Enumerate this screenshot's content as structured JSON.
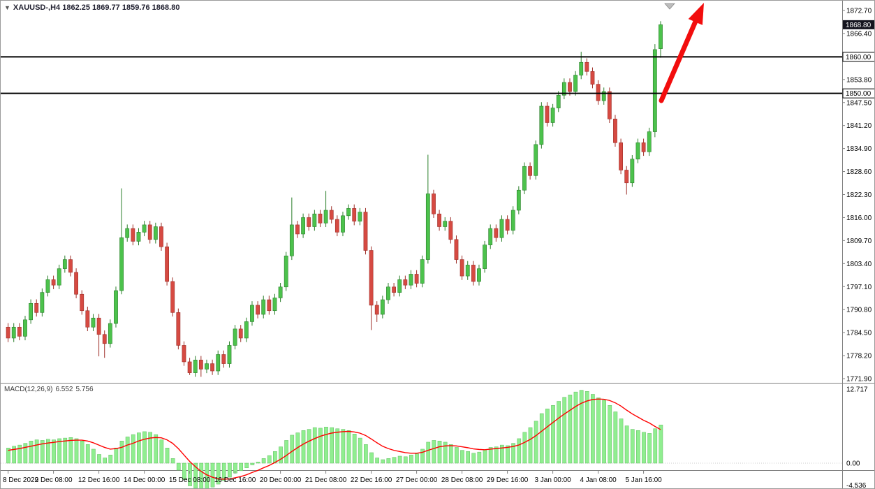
{
  "title": {
    "symbol": "XAUUSD-,H4",
    "ohlc": "1862.25 1869.77 1859.76 1868.80"
  },
  "colors": {
    "up": "#4cc24c",
    "up_stroke": "#2a7e2a",
    "down": "#d64a42",
    "down_stroke": "#9e2f29",
    "hist": "#90EE90",
    "hist_stroke": "#5fbe5f",
    "signal": "#ff0000",
    "hline": "#000000",
    "arrow": "#f20d0d",
    "current_price_bg": "#15151f",
    "current_price_text": "#ffffff",
    "axis_text": "#000000"
  },
  "price_axis": {
    "max": 1872.7,
    "min": 1771.9,
    "labels": [
      1872.7,
      1866.4,
      1853.8,
      1847.5,
      1841.2,
      1834.9,
      1828.6,
      1822.3,
      1816.0,
      1809.7,
      1803.4,
      1797.1,
      1790.8,
      1784.5,
      1778.2,
      1771.9
    ],
    "current_price": "1868.80",
    "hlines": [
      {
        "value": 1860.0,
        "label": "1860.00"
      },
      {
        "value": 1850.0,
        "label": "1850.00"
      }
    ]
  },
  "macd": {
    "label": "MACD(12,26,9)",
    "value_main": "6.552",
    "value_signal": "5.756",
    "scale": [
      "12.717",
      "0.00",
      "-4.536"
    ],
    "scale_values": [
      12.717,
      0,
      -4.536
    ]
  },
  "chart_data": {
    "type": "candlestick",
    "title": "XAUUSD-,H4",
    "symbol": "XAUUSD",
    "timeframe": "H4",
    "current_bar": {
      "open": 1862.25,
      "high": 1869.77,
      "low": 1859.76,
      "close": 1868.8
    },
    "y_range": [
      1771.9,
      1872.7
    ],
    "levels": [
      1850.0,
      1860.0
    ],
    "x_labels": [
      {
        "index": 0,
        "label": "8 Dec 2022"
      },
      {
        "index": 8,
        "label": "9 Dec 08:00"
      },
      {
        "index": 16,
        "label": "12 Dec 16:00"
      },
      {
        "index": 24,
        "label": "14 Dec 00:00"
      },
      {
        "index": 32,
        "label": "15 Dec 08:00"
      },
      {
        "index": 40,
        "label": "16 Dec 16:00"
      },
      {
        "index": 48,
        "label": "20 Dec 00:00"
      },
      {
        "index": 56,
        "label": "21 Dec 08:00"
      },
      {
        "index": 64,
        "label": "22 Dec 16:00"
      },
      {
        "index": 72,
        "label": "27 Dec 00:00"
      },
      {
        "index": 80,
        "label": "28 Dec 08:00"
      },
      {
        "index": 88,
        "label": "29 Dec 16:00"
      },
      {
        "index": 96,
        "label": "3 Jan 00:00"
      },
      {
        "index": 104,
        "label": "4 Jan 08:00"
      },
      {
        "index": 112,
        "label": "5 Jan 16:00"
      }
    ],
    "candles": [
      [
        1786.0,
        1787.1,
        1781.9,
        1783.0
      ],
      [
        1783.0,
        1787.1,
        1781.9,
        1786.0
      ],
      [
        1786.0,
        1787.1,
        1782.4,
        1783.5
      ],
      [
        1783.5,
        1789.1,
        1782.4,
        1788.0
      ],
      [
        1788.0,
        1793.6,
        1786.9,
        1792.5
      ],
      [
        1792.5,
        1793.6,
        1788.9,
        1790.0
      ],
      [
        1790.0,
        1796.6,
        1788.9,
        1795.5
      ],
      [
        1795.5,
        1800.1,
        1794.4,
        1799.0
      ],
      [
        1799.0,
        1800.1,
        1796.4,
        1797.5
      ],
      [
        1797.5,
        1803.1,
        1796.4,
        1802.0
      ],
      [
        1802.0,
        1805.6,
        1800.9,
        1804.5
      ],
      [
        1804.5,
        1805.6,
        1799.9,
        1801.0
      ],
      [
        1801.0,
        1802.1,
        1793.9,
        1795.0
      ],
      [
        1795.0,
        1796.1,
        1789.4,
        1790.5
      ],
      [
        1790.5,
        1791.6,
        1784.9,
        1786.0
      ],
      [
        1786.0,
        1789.6,
        1784.9,
        1788.5
      ],
      [
        1788.5,
        1789.6,
        1778.0,
        1784.0
      ],
      [
        1784.0,
        1785.1,
        1777.6,
        1781.5
      ],
      [
        1781.5,
        1788.1,
        1780.4,
        1787.0
      ],
      [
        1787.0,
        1797.1,
        1785.9,
        1796.0
      ],
      [
        1796.0,
        1824.0,
        1795.0,
        1810.5
      ],
      [
        1810.5,
        1814.1,
        1809.4,
        1813.0
      ],
      [
        1813.0,
        1814.1,
        1808.4,
        1809.5
      ],
      [
        1809.5,
        1813.1,
        1808.4,
        1812.0
      ],
      [
        1812.0,
        1815.1,
        1810.9,
        1814.0
      ],
      [
        1814.0,
        1815.1,
        1808.9,
        1810.0
      ],
      [
        1810.0,
        1814.6,
        1808.9,
        1813.5
      ],
      [
        1813.5,
        1814.6,
        1806.9,
        1808.0
      ],
      [
        1808.0,
        1809.1,
        1797.4,
        1798.5
      ],
      [
        1798.5,
        1799.6,
        1788.9,
        1790.0
      ],
      [
        1790.0,
        1791.1,
        1779.9,
        1781.0
      ],
      [
        1781.0,
        1782.1,
        1775.4,
        1776.5
      ],
      [
        1776.5,
        1777.6,
        1772.9,
        1773.5
      ],
      [
        1773.5,
        1778.1,
        1772.4,
        1777.0
      ],
      [
        1777.0,
        1778.1,
        1772.4,
        1774.5
      ],
      [
        1774.5,
        1777.1,
        1773.4,
        1776.0
      ],
      [
        1776.0,
        1777.1,
        1772.9,
        1774.0
      ],
      [
        1774.0,
        1779.6,
        1772.9,
        1778.5
      ],
      [
        1778.5,
        1779.6,
        1774.9,
        1776.0
      ],
      [
        1776.0,
        1782.1,
        1774.9,
        1781.0
      ],
      [
        1781.0,
        1786.6,
        1779.9,
        1785.5
      ],
      [
        1785.5,
        1786.6,
        1781.9,
        1783.0
      ],
      [
        1783.0,
        1788.6,
        1781.9,
        1787.5
      ],
      [
        1787.5,
        1793.1,
        1786.4,
        1792.0
      ],
      [
        1792.0,
        1793.1,
        1788.4,
        1789.5
      ],
      [
        1789.5,
        1794.6,
        1788.4,
        1793.5
      ],
      [
        1793.5,
        1794.6,
        1789.4,
        1790.5
      ],
      [
        1790.5,
        1795.1,
        1789.4,
        1794.0
      ],
      [
        1794.0,
        1798.1,
        1792.9,
        1797.0
      ],
      [
        1797.0,
        1806.6,
        1795.9,
        1805.5
      ],
      [
        1805.5,
        1821.5,
        1804.4,
        1814.0
      ],
      [
        1814.0,
        1815.1,
        1810.4,
        1811.5
      ],
      [
        1811.5,
        1817.1,
        1810.4,
        1816.0
      ],
      [
        1816.0,
        1817.1,
        1812.4,
        1813.5
      ],
      [
        1813.5,
        1818.1,
        1812.4,
        1817.0
      ],
      [
        1817.0,
        1818.1,
        1813.4,
        1814.5
      ],
      [
        1814.5,
        1823.3,
        1813.4,
        1818.0
      ],
      [
        1818.0,
        1819.1,
        1814.4,
        1815.5
      ],
      [
        1815.5,
        1816.6,
        1810.9,
        1812.0
      ],
      [
        1812.0,
        1817.6,
        1810.9,
        1816.5
      ],
      [
        1816.5,
        1819.6,
        1815.4,
        1818.5
      ],
      [
        1818.5,
        1819.6,
        1813.9,
        1815.0
      ],
      [
        1815.0,
        1818.6,
        1813.9,
        1817.5
      ],
      [
        1817.5,
        1818.6,
        1805.9,
        1807.0
      ],
      [
        1807.0,
        1808.1,
        1785.2,
        1792.0
      ],
      [
        1792.0,
        1793.1,
        1787.4,
        1789.5
      ],
      [
        1789.5,
        1794.6,
        1788.4,
        1793.5
      ],
      [
        1793.5,
        1798.1,
        1792.4,
        1797.0
      ],
      [
        1797.0,
        1798.1,
        1794.4,
        1795.5
      ],
      [
        1795.5,
        1800.1,
        1794.4,
        1799.0
      ],
      [
        1799.0,
        1800.1,
        1796.4,
        1797.5
      ],
      [
        1797.5,
        1801.6,
        1796.4,
        1800.5
      ],
      [
        1800.5,
        1801.6,
        1796.9,
        1798.0
      ],
      [
        1798.0,
        1805.6,
        1796.9,
        1804.5
      ],
      [
        1804.5,
        1833.2,
        1803.4,
        1822.5
      ],
      [
        1822.5,
        1823.6,
        1815.9,
        1817.0
      ],
      [
        1817.0,
        1818.1,
        1812.4,
        1813.5
      ],
      [
        1813.5,
        1816.1,
        1812.4,
        1815.0
      ],
      [
        1815.0,
        1816.1,
        1808.9,
        1810.0
      ],
      [
        1810.0,
        1811.1,
        1803.4,
        1804.5
      ],
      [
        1804.5,
        1805.6,
        1798.9,
        1800.0
      ],
      [
        1800.0,
        1804.1,
        1798.9,
        1803.0
      ],
      [
        1803.0,
        1804.1,
        1797.4,
        1798.5
      ],
      [
        1798.5,
        1803.1,
        1797.4,
        1802.0
      ],
      [
        1802.0,
        1809.6,
        1800.9,
        1808.5
      ],
      [
        1808.5,
        1814.1,
        1807.4,
        1813.0
      ],
      [
        1813.0,
        1814.1,
        1809.4,
        1810.5
      ],
      [
        1810.5,
        1816.6,
        1809.4,
        1815.5
      ],
      [
        1815.5,
        1816.6,
        1811.4,
        1812.5
      ],
      [
        1812.5,
        1819.1,
        1811.4,
        1818.0
      ],
      [
        1818.0,
        1824.6,
        1816.9,
        1823.5
      ],
      [
        1823.5,
        1831.1,
        1822.4,
        1830.0
      ],
      [
        1830.0,
        1831.1,
        1826.4,
        1827.5
      ],
      [
        1827.5,
        1837.1,
        1826.4,
        1836.0
      ],
      [
        1836.0,
        1847.6,
        1834.9,
        1846.5
      ],
      [
        1846.5,
        1847.6,
        1840.9,
        1842.0
      ],
      [
        1842.0,
        1847.1,
        1840.9,
        1846.0
      ],
      [
        1846.0,
        1850.6,
        1844.9,
        1849.5
      ],
      [
        1849.5,
        1854.1,
        1848.4,
        1853.0
      ],
      [
        1853.0,
        1854.1,
        1849.4,
        1850.5
      ],
      [
        1850.5,
        1856.1,
        1849.4,
        1855.0
      ],
      [
        1855.0,
        1861.4,
        1853.9,
        1858.5
      ],
      [
        1858.5,
        1859.6,
        1854.9,
        1856.0
      ],
      [
        1856.0,
        1857.1,
        1851.4,
        1852.5
      ],
      [
        1852.5,
        1853.6,
        1846.9,
        1848.0
      ],
      [
        1848.0,
        1851.6,
        1846.9,
        1850.5
      ],
      [
        1850.5,
        1851.6,
        1841.9,
        1843.0
      ],
      [
        1843.0,
        1844.1,
        1835.4,
        1836.5
      ],
      [
        1836.5,
        1837.6,
        1827.9,
        1829.0
      ],
      [
        1829.0,
        1830.1,
        1822.3,
        1825.5
      ],
      [
        1825.5,
        1833.1,
        1824.4,
        1832.0
      ],
      [
        1832.0,
        1837.6,
        1830.9,
        1836.5
      ],
      [
        1836.5,
        1837.6,
        1832.9,
        1834.0
      ],
      [
        1834.0,
        1840.6,
        1832.9,
        1839.5
      ],
      [
        1839.5,
        1863.5,
        1838.0,
        1862.0
      ],
      [
        1862.25,
        1869.77,
        1859.76,
        1868.8
      ]
    ],
    "indicator": {
      "type": "MACD",
      "params": [
        12,
        26,
        9
      ],
      "y_range": [
        -4.536,
        12.717
      ],
      "histogram": [
        2.6,
        2.9,
        3.1,
        3.4,
        3.8,
        4.0,
        3.9,
        4.1,
        4.0,
        4.2,
        4.3,
        4.4,
        4.2,
        3.8,
        3.2,
        2.4,
        1.5,
        0.9,
        1.4,
        2.6,
        3.8,
        4.5,
        4.9,
        5.2,
        5.4,
        5.3,
        4.9,
        4.0,
        2.6,
        0.8,
        -1.2,
        -2.8,
        -3.9,
        -4.3,
        -4.5,
        -4.4,
        -4.1,
        -3.6,
        -3.0,
        -2.4,
        -1.7,
        -1.3,
        -0.8,
        -0.3,
        0.2,
        0.8,
        1.3,
        2.0,
        2.8,
        3.9,
        4.8,
        5.2,
        5.6,
        5.8,
        6.1,
        6.0,
        6.2,
        6.1,
        5.9,
        5.8,
        5.6,
        5.0,
        4.3,
        3.2,
        1.8,
        0.9,
        0.6,
        0.8,
        1.0,
        1.2,
        1.1,
        1.4,
        1.6,
        2.4,
        3.6,
        3.9,
        3.8,
        3.6,
        3.2,
        2.7,
        2.2,
        2.0,
        1.7,
        1.9,
        2.3,
        2.7,
        2.8,
        3.1,
        3.0,
        3.4,
        4.2,
        5.3,
        6.1,
        7.2,
        8.5,
        9.3,
        9.9,
        10.6,
        11.3,
        11.7,
        12.2,
        12.5,
        12.3,
        11.8,
        11.2,
        10.8,
        9.9,
        8.8,
        7.6,
        6.4,
        5.8,
        5.6,
        5.3,
        5.1,
        5.9,
        6.552
      ],
      "signal": [
        2.2,
        2.35,
        2.5,
        2.7,
        2.9,
        3.1,
        3.3,
        3.45,
        3.55,
        3.7,
        3.8,
        3.9,
        3.95,
        3.95,
        3.8,
        3.5,
        3.1,
        2.7,
        2.4,
        2.5,
        2.7,
        3.1,
        3.4,
        3.8,
        4.1,
        4.3,
        4.4,
        4.35,
        4.0,
        3.4,
        2.5,
        1.4,
        0.3,
        -0.6,
        -1.4,
        -2.0,
        -2.4,
        -2.7,
        -2.75,
        -2.7,
        -2.5,
        -2.3,
        -2.0,
        -1.6,
        -1.25,
        -0.8,
        -0.4,
        0.1,
        0.65,
        1.3,
        2.0,
        2.65,
        3.25,
        3.75,
        4.2,
        4.6,
        4.9,
        5.15,
        5.3,
        5.4,
        5.45,
        5.35,
        5.15,
        4.75,
        4.15,
        3.5,
        2.9,
        2.5,
        2.2,
        2.0,
        1.8,
        1.7,
        1.7,
        1.85,
        2.2,
        2.5,
        2.8,
        2.95,
        3.0,
        2.95,
        2.8,
        2.65,
        2.45,
        2.35,
        2.3,
        2.4,
        2.5,
        2.6,
        2.7,
        2.85,
        3.1,
        3.55,
        4.05,
        4.7,
        5.45,
        6.2,
        6.95,
        7.7,
        8.4,
        9.05,
        9.7,
        10.25,
        10.65,
        10.9,
        11.0,
        10.95,
        10.75,
        10.35,
        9.8,
        9.1,
        8.45,
        7.9,
        7.35,
        6.9,
        6.3,
        5.756
      ]
    }
  }
}
